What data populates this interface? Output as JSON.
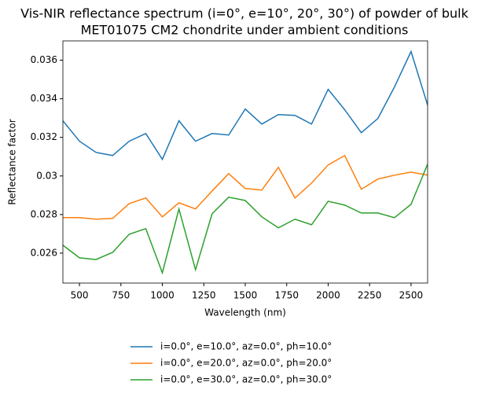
{
  "chart_data": {
    "type": "line",
    "title": [
      "Vis-NIR reflectance spectrum (i=0°, e=10°, 20°, 30°) of powder of bulk",
      "MET01075 CM2 chondrite under ambient conditions"
    ],
    "xlabel": "Wavelength (nm)",
    "ylabel": "Reflectance factor",
    "x": [
      400,
      500,
      600,
      700,
      800,
      900,
      1000,
      1100,
      1200,
      1300,
      1400,
      1500,
      1600,
      1700,
      1800,
      1900,
      2000,
      2100,
      2200,
      2300,
      2400,
      2500,
      2600
    ],
    "series": [
      {
        "name": "i=0.0°, e=10.0°, az=0.0°, ph=10.0°",
        "color": "#1f77b4",
        "values": [
          0.03286,
          0.0318,
          0.03122,
          0.03106,
          0.0318,
          0.0322,
          0.03086,
          0.03286,
          0.0318,
          0.0322,
          0.03212,
          0.03347,
          0.03269,
          0.03318,
          0.03314,
          0.03269,
          0.03449,
          0.03343,
          0.03224,
          0.03298,
          0.03461,
          0.03645,
          0.03367
        ]
      },
      {
        "name": "i=0.0°, e=20.0°, az=0.0°, ph=20.0°",
        "color": "#ff7f0e",
        "values": [
          0.02784,
          0.02784,
          0.02776,
          0.0278,
          0.02857,
          0.02886,
          0.02788,
          0.02861,
          0.02829,
          0.02922,
          0.03012,
          0.02935,
          0.02927,
          0.03045,
          0.02886,
          0.02963,
          0.03057,
          0.03106,
          0.02931,
          0.02984,
          0.03004,
          0.0302,
          0.03004
        ]
      },
      {
        "name": "i=0.0°, e=30.0°, az=0.0°, ph=30.0°",
        "color": "#2ca02c",
        "values": [
          0.02641,
          0.02576,
          0.02567,
          0.02604,
          0.02698,
          0.02727,
          0.02498,
          0.02829,
          0.02514,
          0.02804,
          0.0289,
          0.02873,
          0.02788,
          0.02731,
          0.02776,
          0.02747,
          0.02869,
          0.02849,
          0.02808,
          0.02808,
          0.02784,
          0.02853,
          0.03061
        ]
      }
    ],
    "xlim": [
      400,
      2600
    ],
    "ylim": [
      0.02445,
      0.037
    ],
    "xticks": [
      500,
      750,
      1000,
      1250,
      1500,
      1750,
      2000,
      2250,
      2500
    ],
    "yticks": [
      0.026,
      0.028,
      0.03,
      0.032,
      0.034,
      0.036
    ],
    "grid": false,
    "legend": "below"
  }
}
